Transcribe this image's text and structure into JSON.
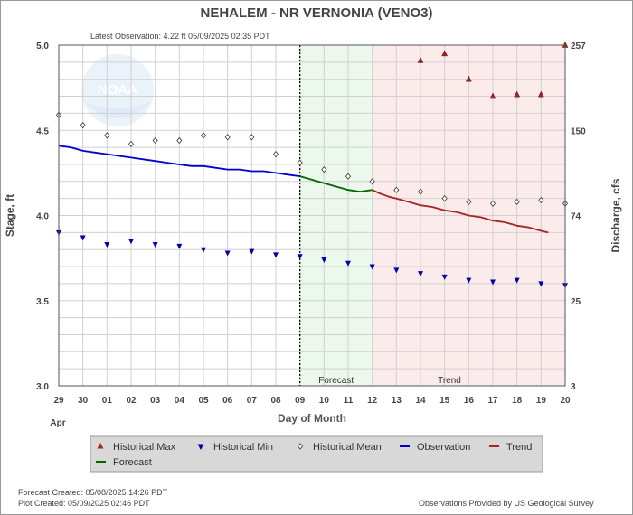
{
  "chart_data": {
    "type": "line",
    "title": "NEHALEM - NR VERNONIA  (VENO3)",
    "subtitle": "Latest Observation: 4.22 ft 05/09/2025 02:35 PDT",
    "xlabel": "Day of Month",
    "ylabel": "Stage, ft",
    "y2label": "Discharge, cfs",
    "month_label": "Apr",
    "x_tick_labels": [
      "29",
      "30",
      "01",
      "02",
      "03",
      "04",
      "05",
      "06",
      "07",
      "08",
      "09",
      "10",
      "11",
      "12",
      "13",
      "14",
      "15",
      "16",
      "17",
      "18",
      "19",
      "20"
    ],
    "xlim": [
      0,
      21
    ],
    "ylim": [
      3.0,
      5.0
    ],
    "y_ticks": [
      3.0,
      3.5,
      4.0,
      4.5,
      5.0
    ],
    "y2_ticks": [
      {
        "stage": 3.0,
        "label": "3"
      },
      {
        "stage": 3.5,
        "label": "25"
      },
      {
        "stage": 4.0,
        "label": "74"
      },
      {
        "stage": 4.5,
        "label": "150"
      },
      {
        "stage": 5.0,
        "label": "257"
      }
    ],
    "regions": [
      {
        "name": "Forecast",
        "from": 10,
        "to": 13.0,
        "color": "#ebf8eb"
      },
      {
        "name": "Trend",
        "from": 13.0,
        "to": 21,
        "color": "#fcebeb"
      }
    ],
    "now_x": 10.0,
    "watermark": "NOAA",
    "series": [
      {
        "name": "Observation",
        "color": "#0000cc",
        "x": [
          0,
          0.5,
          1,
          1.5,
          2,
          2.5,
          3,
          3.5,
          4,
          4.5,
          5,
          5.5,
          6,
          6.5,
          7,
          7.5,
          8,
          8.5,
          9,
          9.5,
          10
        ],
        "y": [
          4.41,
          4.4,
          4.38,
          4.37,
          4.36,
          4.35,
          4.34,
          4.33,
          4.32,
          4.31,
          4.3,
          4.29,
          4.29,
          4.28,
          4.27,
          4.27,
          4.26,
          4.26,
          4.25,
          4.24,
          4.23
        ]
      },
      {
        "name": "Forecast",
        "color": "#006600",
        "x": [
          10,
          10.5,
          11,
          11.5,
          12,
          12.5,
          13.0
        ],
        "y": [
          4.23,
          4.21,
          4.19,
          4.17,
          4.15,
          4.14,
          4.15
        ]
      },
      {
        "name": "Trend",
        "color": "#aa2222",
        "x": [
          13.0,
          13.3,
          13.7,
          14,
          14.5,
          15,
          15.5,
          16,
          16.5,
          17,
          17.5,
          18,
          18.5,
          19,
          19.5,
          20,
          20.3
        ],
        "y": [
          4.15,
          4.13,
          4.11,
          4.1,
          4.08,
          4.06,
          4.05,
          4.03,
          4.02,
          4.0,
          3.99,
          3.97,
          3.96,
          3.94,
          3.93,
          3.91,
          3.9
        ]
      },
      {
        "name": "Historical Max",
        "color": "#aa2222",
        "marker": "triangle-up",
        "x": [
          15,
          16,
          17,
          18,
          19,
          20,
          21
        ],
        "y": [
          4.91,
          4.95,
          4.8,
          4.7,
          4.71,
          4.71,
          5.0
        ]
      },
      {
        "name": "Historical Min",
        "color": "#0000aa",
        "marker": "triangle-down",
        "x": [
          0,
          1,
          2,
          3,
          4,
          5,
          6,
          7,
          8,
          9,
          10,
          11,
          12,
          13,
          14,
          15,
          16,
          17,
          18,
          19,
          20,
          21
        ],
        "y": [
          3.9,
          3.87,
          3.83,
          3.85,
          3.83,
          3.82,
          3.8,
          3.78,
          3.79,
          3.77,
          3.76,
          3.74,
          3.72,
          3.7,
          3.68,
          3.66,
          3.64,
          3.62,
          3.61,
          3.62,
          3.6,
          3.59
        ]
      },
      {
        "name": "Historical Mean",
        "color": "#333333",
        "marker": "diamond",
        "x": [
          0,
          1,
          2,
          3,
          4,
          5,
          6,
          7,
          8,
          9,
          10,
          11,
          12,
          13,
          14,
          15,
          16,
          17,
          18,
          19,
          20,
          21
        ],
        "y": [
          4.59,
          4.53,
          4.47,
          4.42,
          4.44,
          4.44,
          4.47,
          4.46,
          4.46,
          4.36,
          4.31,
          4.27,
          4.23,
          4.2,
          4.15,
          4.14,
          4.1,
          4.08,
          4.07,
          4.08,
          4.09,
          4.07
        ]
      }
    ],
    "legend": [
      {
        "label": "Historical Max",
        "kind": "triangle-up",
        "color": "#aa2222"
      },
      {
        "label": "Historical Min",
        "kind": "triangle-down",
        "color": "#0000aa"
      },
      {
        "label": "Historical Mean",
        "kind": "diamond",
        "color": "#333333"
      },
      {
        "label": "Observation",
        "kind": "line",
        "color": "#0000cc"
      },
      {
        "label": "Trend",
        "kind": "line",
        "color": "#aa2222"
      },
      {
        "label": "Forecast",
        "kind": "line",
        "color": "#006600"
      }
    ],
    "legend_position": "bottom"
  },
  "footer": {
    "forecast_created": "Forecast Created: 05/08/2025 14:26 PDT",
    "plot_created": "Plot Created: 05/09/2025 02:46 PDT",
    "credit": "Observations Provided by US Geological Survey"
  }
}
